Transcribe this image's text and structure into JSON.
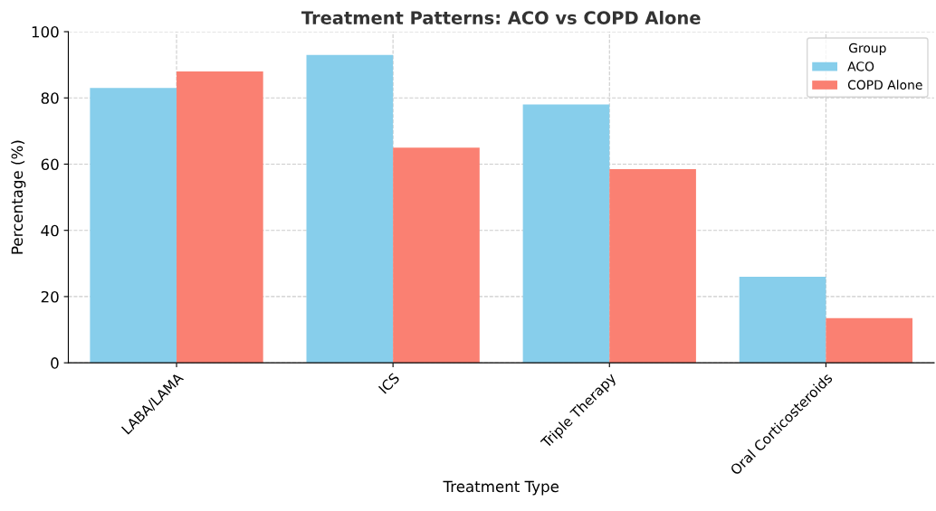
{
  "chart_data": {
    "type": "bar",
    "title": "Treatment Patterns: ACO vs COPD Alone",
    "xlabel": "Treatment Type",
    "ylabel": "Percentage (%)",
    "legend_title": "Group",
    "categories": [
      "LABA/LAMA",
      "ICS",
      "Triple Therapy",
      "Oral Corticosteroids"
    ],
    "series": [
      {
        "name": "ACO",
        "color": "#87ceeb",
        "values": [
          83,
          93,
          78,
          26
        ]
      },
      {
        "name": "COPD Alone",
        "color": "#fa8072",
        "values": [
          88,
          65,
          58.5,
          13.5
        ]
      }
    ],
    "ylim": [
      0,
      100
    ],
    "yticks": [
      0,
      20,
      40,
      60,
      80,
      100
    ],
    "grid": true,
    "legend": "top right"
  }
}
